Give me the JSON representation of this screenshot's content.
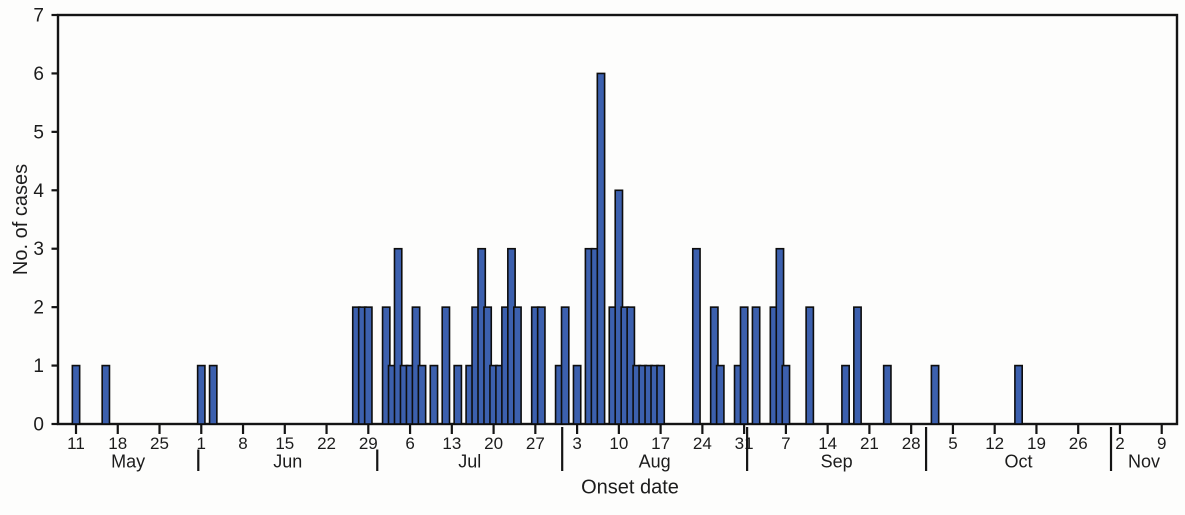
{
  "chart_data": {
    "type": "bar",
    "title": "",
    "xlabel": "Onset date",
    "ylabel": "No. of cases",
    "ylim": [
      0,
      7
    ],
    "ytick_labels": [
      "0",
      "1",
      "2",
      "3",
      "4",
      "5",
      "6",
      "7"
    ],
    "grid": false,
    "legend": "none",
    "x_axis_months": [
      {
        "label": "May",
        "tick_days": [
          11,
          18,
          25
        ]
      },
      {
        "label": "Jun",
        "tick_days": [
          1,
          8,
          15,
          22,
          29
        ]
      },
      {
        "label": "Jul",
        "tick_days": [
          6,
          13,
          20,
          27
        ]
      },
      {
        "label": "Aug",
        "tick_days": [
          3,
          10,
          17,
          24,
          31
        ]
      },
      {
        "label": "Sep",
        "tick_days": [
          7,
          14,
          21,
          28
        ]
      },
      {
        "label": "Oct",
        "tick_days": [
          5,
          12,
          19,
          26
        ]
      },
      {
        "label": "Nov",
        "tick_days": [
          2,
          9
        ]
      }
    ],
    "bin_size": "1 day",
    "cases": [
      {
        "month": "May",
        "day": 11,
        "count": 1
      },
      {
        "month": "May",
        "day": 16,
        "count": 1
      },
      {
        "month": "Jun",
        "day": 1,
        "count": 1
      },
      {
        "month": "Jun",
        "day": 3,
        "count": 1
      },
      {
        "month": "Jun",
        "day": 27,
        "count": 2
      },
      {
        "month": "Jun",
        "day": 28,
        "count": 2
      },
      {
        "month": "Jun",
        "day": 29,
        "count": 2
      },
      {
        "month": "Jul",
        "day": 2,
        "count": 2
      },
      {
        "month": "Jul",
        "day": 3,
        "count": 1
      },
      {
        "month": "Jul",
        "day": 4,
        "count": 3
      },
      {
        "month": "Jul",
        "day": 5,
        "count": 1
      },
      {
        "month": "Jul",
        "day": 6,
        "count": 1
      },
      {
        "month": "Jul",
        "day": 7,
        "count": 2
      },
      {
        "month": "Jul",
        "day": 8,
        "count": 1
      },
      {
        "month": "Jul",
        "day": 10,
        "count": 1
      },
      {
        "month": "Jul",
        "day": 12,
        "count": 2
      },
      {
        "month": "Jul",
        "day": 14,
        "count": 1
      },
      {
        "month": "Jul",
        "day": 16,
        "count": 1
      },
      {
        "month": "Jul",
        "day": 17,
        "count": 2
      },
      {
        "month": "Jul",
        "day": 18,
        "count": 3
      },
      {
        "month": "Jul",
        "day": 19,
        "count": 2
      },
      {
        "month": "Jul",
        "day": 20,
        "count": 1
      },
      {
        "month": "Jul",
        "day": 21,
        "count": 1
      },
      {
        "month": "Jul",
        "day": 22,
        "count": 2
      },
      {
        "month": "Jul",
        "day": 23,
        "count": 3
      },
      {
        "month": "Jul",
        "day": 24,
        "count": 2
      },
      {
        "month": "Jul",
        "day": 27,
        "count": 2
      },
      {
        "month": "Jul",
        "day": 28,
        "count": 2
      },
      {
        "month": "Jul",
        "day": 31,
        "count": 1
      },
      {
        "month": "Aug",
        "day": 1,
        "count": 2
      },
      {
        "month": "Aug",
        "day": 3,
        "count": 1
      },
      {
        "month": "Aug",
        "day": 5,
        "count": 3
      },
      {
        "month": "Aug",
        "day": 6,
        "count": 3
      },
      {
        "month": "Aug",
        "day": 7,
        "count": 6
      },
      {
        "month": "Aug",
        "day": 9,
        "count": 2
      },
      {
        "month": "Aug",
        "day": 10,
        "count": 4
      },
      {
        "month": "Aug",
        "day": 11,
        "count": 2
      },
      {
        "month": "Aug",
        "day": 12,
        "count": 2
      },
      {
        "month": "Aug",
        "day": 13,
        "count": 1
      },
      {
        "month": "Aug",
        "day": 14,
        "count": 1
      },
      {
        "month": "Aug",
        "day": 15,
        "count": 1
      },
      {
        "month": "Aug",
        "day": 16,
        "count": 1
      },
      {
        "month": "Aug",
        "day": 17,
        "count": 1
      },
      {
        "month": "Aug",
        "day": 23,
        "count": 3
      },
      {
        "month": "Aug",
        "day": 26,
        "count": 2
      },
      {
        "month": "Aug",
        "day": 27,
        "count": 1
      },
      {
        "month": "Aug",
        "day": 30,
        "count": 1
      },
      {
        "month": "Aug",
        "day": 31,
        "count": 2
      },
      {
        "month": "Sep",
        "day": 2,
        "count": 2
      },
      {
        "month": "Sep",
        "day": 5,
        "count": 2
      },
      {
        "month": "Sep",
        "day": 6,
        "count": 3
      },
      {
        "month": "Sep",
        "day": 7,
        "count": 1
      },
      {
        "month": "Sep",
        "day": 11,
        "count": 2
      },
      {
        "month": "Sep",
        "day": 17,
        "count": 1
      },
      {
        "month": "Sep",
        "day": 19,
        "count": 2
      },
      {
        "month": "Sep",
        "day": 24,
        "count": 1
      },
      {
        "month": "Oct",
        "day": 2,
        "count": 1
      },
      {
        "month": "Oct",
        "day": 16,
        "count": 1
      }
    ]
  },
  "colors": {
    "bar_fill": "#3c60ae",
    "bar_border": "#0d0d0d",
    "axis": "#141414",
    "text": "#1c1c1c",
    "background": "#fdfdfc"
  }
}
